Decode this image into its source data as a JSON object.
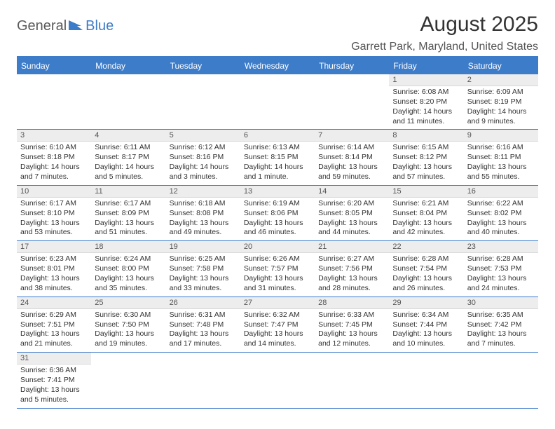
{
  "logo": {
    "text_general": "General",
    "text_blue": "Blue"
  },
  "title": "August 2025",
  "location": "Garrett Park, Maryland, United States",
  "colors": {
    "header_bg": "#3d7cc9",
    "header_fg": "#ffffff",
    "daynum_bg": "#ededed",
    "border": "#3d7cc9",
    "text": "#333333"
  },
  "day_names": [
    "Sunday",
    "Monday",
    "Tuesday",
    "Wednesday",
    "Thursday",
    "Friday",
    "Saturday"
  ],
  "weeks": [
    [
      null,
      null,
      null,
      null,
      null,
      {
        "n": "1",
        "sunrise": "6:08 AM",
        "sunset": "8:20 PM",
        "daylight": "14 hours and 11 minutes."
      },
      {
        "n": "2",
        "sunrise": "6:09 AM",
        "sunset": "8:19 PM",
        "daylight": "14 hours and 9 minutes."
      }
    ],
    [
      {
        "n": "3",
        "sunrise": "6:10 AM",
        "sunset": "8:18 PM",
        "daylight": "14 hours and 7 minutes."
      },
      {
        "n": "4",
        "sunrise": "6:11 AM",
        "sunset": "8:17 PM",
        "daylight": "14 hours and 5 minutes."
      },
      {
        "n": "5",
        "sunrise": "6:12 AM",
        "sunset": "8:16 PM",
        "daylight": "14 hours and 3 minutes."
      },
      {
        "n": "6",
        "sunrise": "6:13 AM",
        "sunset": "8:15 PM",
        "daylight": "14 hours and 1 minute."
      },
      {
        "n": "7",
        "sunrise": "6:14 AM",
        "sunset": "8:14 PM",
        "daylight": "13 hours and 59 minutes."
      },
      {
        "n": "8",
        "sunrise": "6:15 AM",
        "sunset": "8:12 PM",
        "daylight": "13 hours and 57 minutes."
      },
      {
        "n": "9",
        "sunrise": "6:16 AM",
        "sunset": "8:11 PM",
        "daylight": "13 hours and 55 minutes."
      }
    ],
    [
      {
        "n": "10",
        "sunrise": "6:17 AM",
        "sunset": "8:10 PM",
        "daylight": "13 hours and 53 minutes."
      },
      {
        "n": "11",
        "sunrise": "6:17 AM",
        "sunset": "8:09 PM",
        "daylight": "13 hours and 51 minutes."
      },
      {
        "n": "12",
        "sunrise": "6:18 AM",
        "sunset": "8:08 PM",
        "daylight": "13 hours and 49 minutes."
      },
      {
        "n": "13",
        "sunrise": "6:19 AM",
        "sunset": "8:06 PM",
        "daylight": "13 hours and 46 minutes."
      },
      {
        "n": "14",
        "sunrise": "6:20 AM",
        "sunset": "8:05 PM",
        "daylight": "13 hours and 44 minutes."
      },
      {
        "n": "15",
        "sunrise": "6:21 AM",
        "sunset": "8:04 PM",
        "daylight": "13 hours and 42 minutes."
      },
      {
        "n": "16",
        "sunrise": "6:22 AM",
        "sunset": "8:02 PM",
        "daylight": "13 hours and 40 minutes."
      }
    ],
    [
      {
        "n": "17",
        "sunrise": "6:23 AM",
        "sunset": "8:01 PM",
        "daylight": "13 hours and 38 minutes."
      },
      {
        "n": "18",
        "sunrise": "6:24 AM",
        "sunset": "8:00 PM",
        "daylight": "13 hours and 35 minutes."
      },
      {
        "n": "19",
        "sunrise": "6:25 AM",
        "sunset": "7:58 PM",
        "daylight": "13 hours and 33 minutes."
      },
      {
        "n": "20",
        "sunrise": "6:26 AM",
        "sunset": "7:57 PM",
        "daylight": "13 hours and 31 minutes."
      },
      {
        "n": "21",
        "sunrise": "6:27 AM",
        "sunset": "7:56 PM",
        "daylight": "13 hours and 28 minutes."
      },
      {
        "n": "22",
        "sunrise": "6:28 AM",
        "sunset": "7:54 PM",
        "daylight": "13 hours and 26 minutes."
      },
      {
        "n": "23",
        "sunrise": "6:28 AM",
        "sunset": "7:53 PM",
        "daylight": "13 hours and 24 minutes."
      }
    ],
    [
      {
        "n": "24",
        "sunrise": "6:29 AM",
        "sunset": "7:51 PM",
        "daylight": "13 hours and 21 minutes."
      },
      {
        "n": "25",
        "sunrise": "6:30 AM",
        "sunset": "7:50 PM",
        "daylight": "13 hours and 19 minutes."
      },
      {
        "n": "26",
        "sunrise": "6:31 AM",
        "sunset": "7:48 PM",
        "daylight": "13 hours and 17 minutes."
      },
      {
        "n": "27",
        "sunrise": "6:32 AM",
        "sunset": "7:47 PM",
        "daylight": "13 hours and 14 minutes."
      },
      {
        "n": "28",
        "sunrise": "6:33 AM",
        "sunset": "7:45 PM",
        "daylight": "13 hours and 12 minutes."
      },
      {
        "n": "29",
        "sunrise": "6:34 AM",
        "sunset": "7:44 PM",
        "daylight": "13 hours and 10 minutes."
      },
      {
        "n": "30",
        "sunrise": "6:35 AM",
        "sunset": "7:42 PM",
        "daylight": "13 hours and 7 minutes."
      }
    ],
    [
      {
        "n": "31",
        "sunrise": "6:36 AM",
        "sunset": "7:41 PM",
        "daylight": "13 hours and 5 minutes."
      },
      null,
      null,
      null,
      null,
      null,
      null
    ]
  ],
  "labels": {
    "sunrise": "Sunrise: ",
    "sunset": "Sunset: ",
    "daylight": "Daylight: "
  }
}
